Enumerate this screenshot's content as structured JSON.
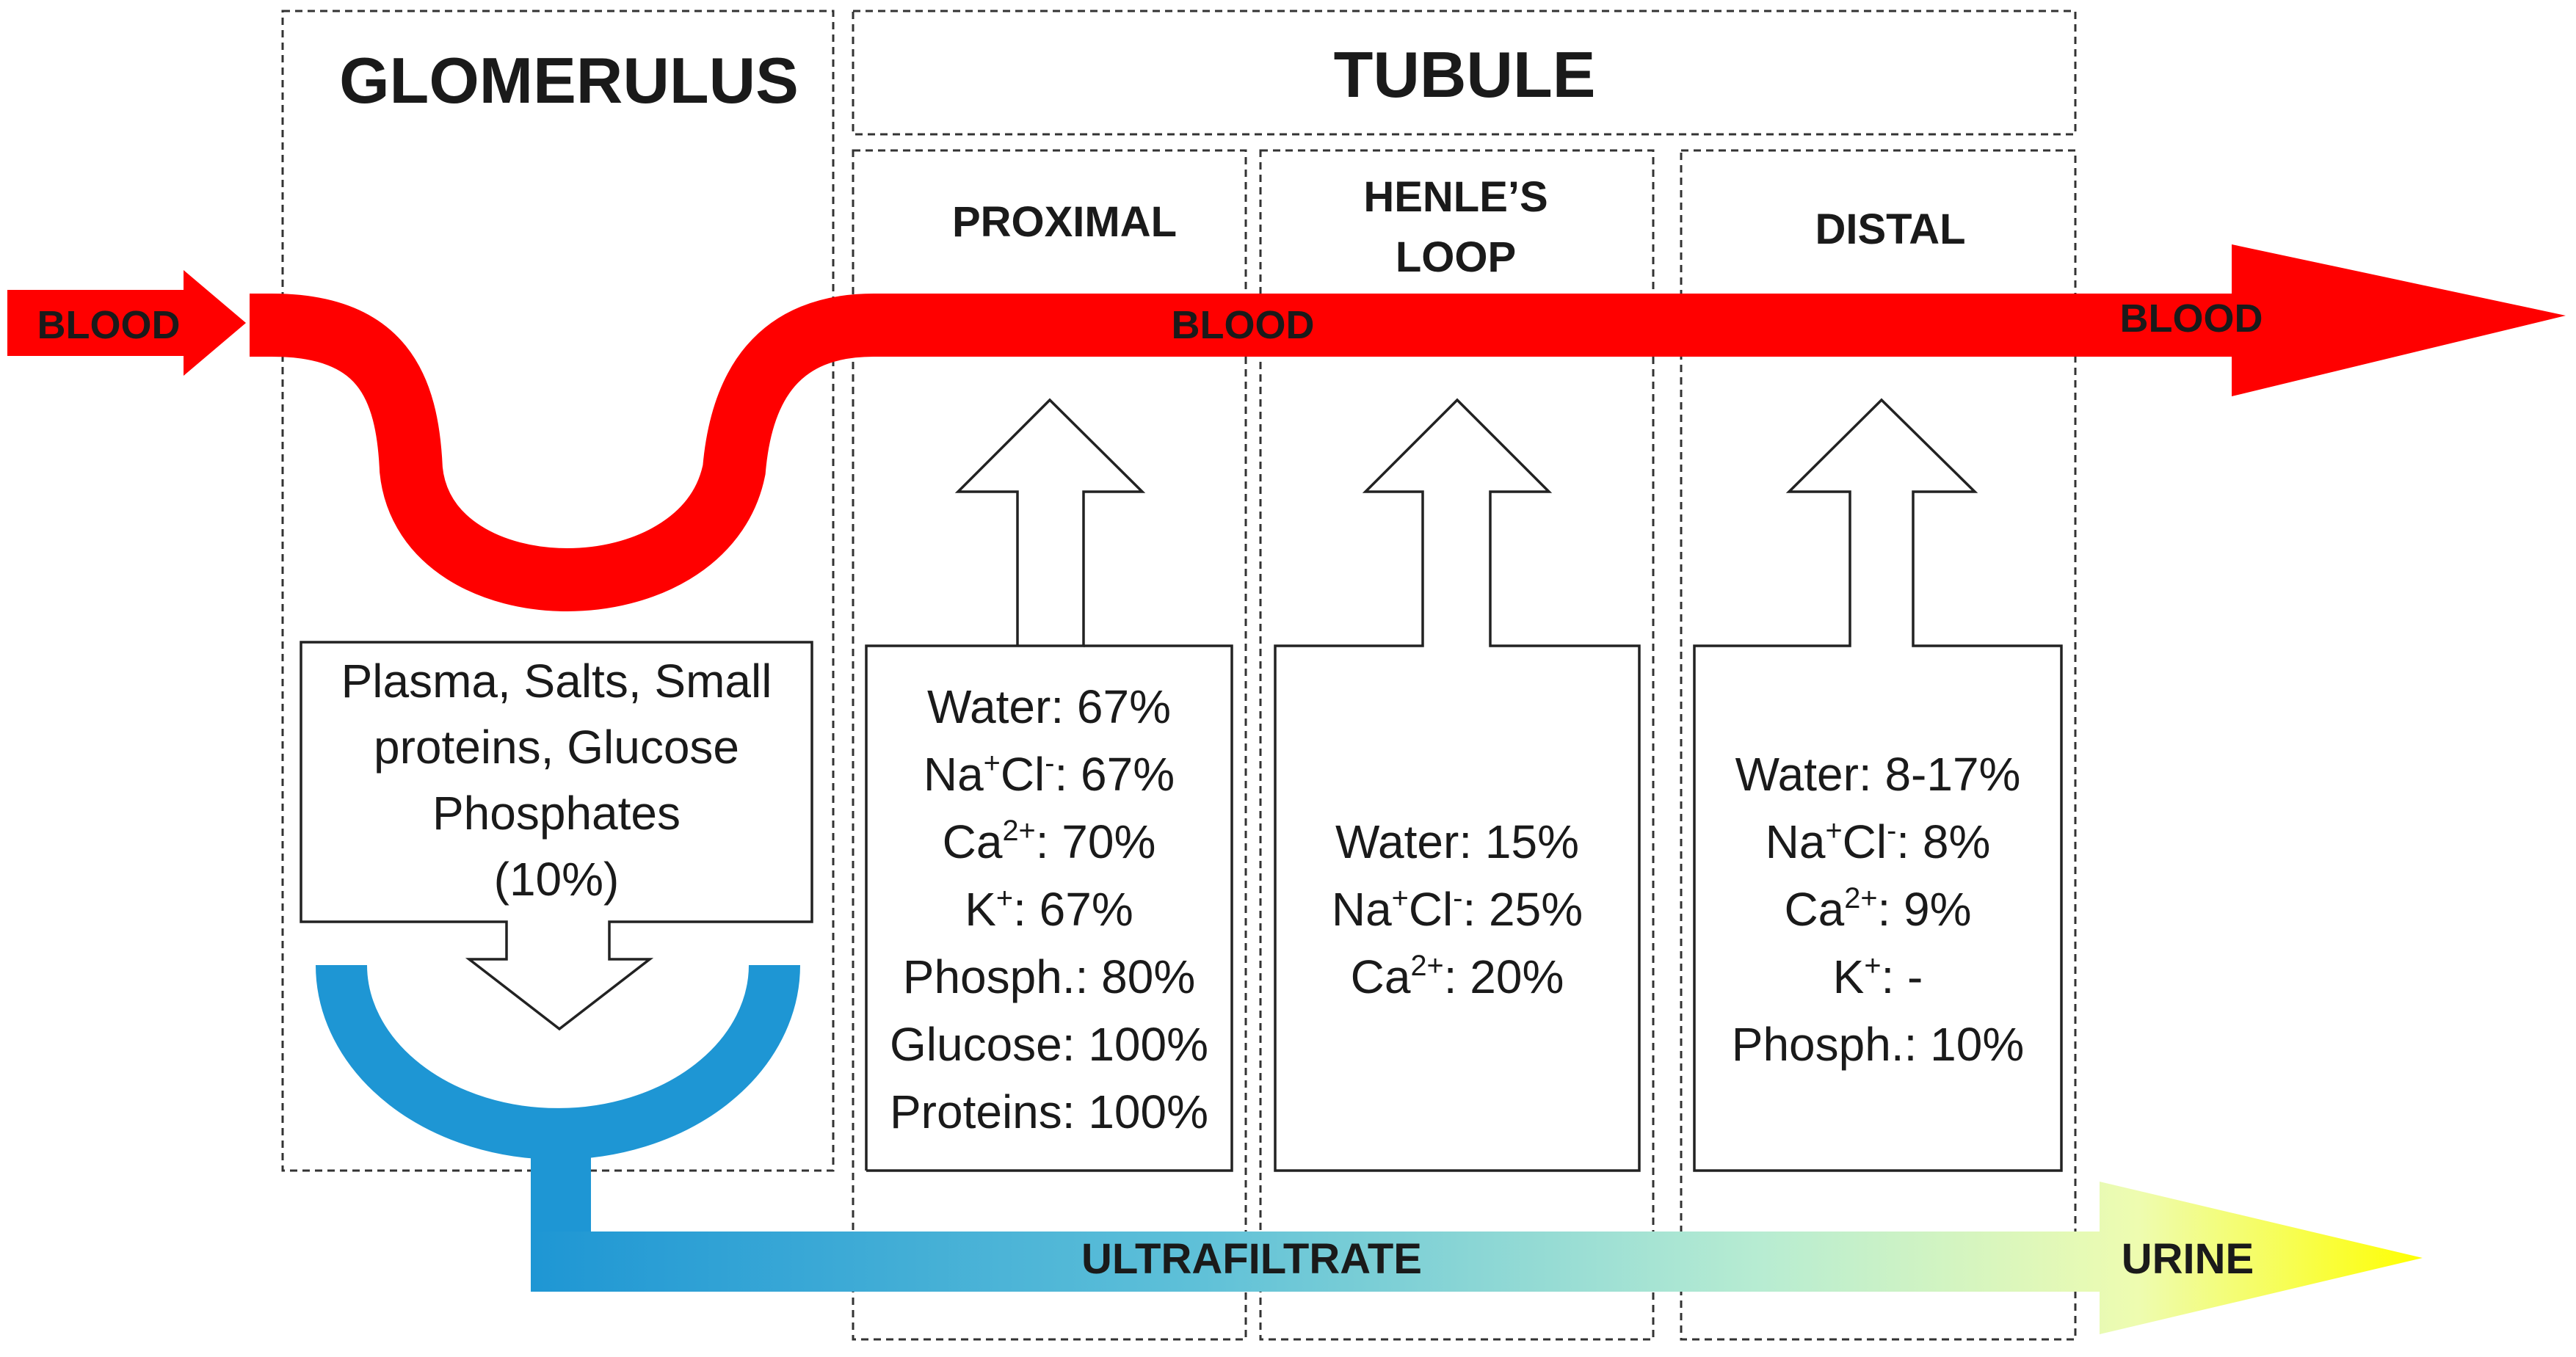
{
  "headers": {
    "glomerulus": "GLOMERULUS",
    "tubule": "TUBULE",
    "proximal": "PROXIMAL",
    "henle_line1": "HENLE’S",
    "henle_line2": "LOOP",
    "distal": "DISTAL"
  },
  "flow_labels": {
    "blood_in": "BLOOD",
    "blood_mid": "BLOOD",
    "blood_out": "BLOOD",
    "ultrafiltrate": "ULTRAFILTRATE",
    "urine": "URINE"
  },
  "glomerulus_filtrate": {
    "lines": [
      "Plasma, Salts, Small",
      "proteins, Glucose",
      "Phosphates",
      "(10%)"
    ]
  },
  "proximal_reabsorption": {
    "water": "Water: 67%",
    "nacl_pre": "Na",
    "nacl_sup1": "+",
    "nacl_mid": "Cl",
    "nacl_sup2": "-",
    "nacl_val": ": 67%",
    "ca_pre": "Ca",
    "ca_sup": "2+",
    "ca_val": ": 70%",
    "k_pre": "K",
    "k_sup": "+",
    "k_val": ": 67%",
    "phosph": "Phosph.: 80%",
    "glucose": "Glucose: 100%",
    "proteins": "Proteins: 100%"
  },
  "henle_reabsorption": {
    "water": "Water: 15%",
    "nacl_pre": "Na",
    "nacl_sup1": "+",
    "nacl_mid": "Cl",
    "nacl_sup2": "-",
    "nacl_val": ": 25%",
    "ca_pre": "Ca",
    "ca_sup": "2+",
    "ca_val": ": 20%"
  },
  "distal_reabsorption": {
    "water": "Water: 8-17%",
    "nacl_pre": "Na",
    "nacl_sup1": "+",
    "nacl_mid": "Cl",
    "nacl_sup2": "-",
    "nacl_val": ": 8%",
    "ca_pre": "Ca",
    "ca_sup": "2+",
    "ca_val": ": 9%",
    "k_pre": "K",
    "k_sup": "+",
    "k_val": ": -",
    "phosph": "Phosph.: 10%"
  },
  "colors": {
    "blood": "#ff0000",
    "filtrate_blue": "#1e96d4",
    "urine_yellow": "#ffff00"
  }
}
